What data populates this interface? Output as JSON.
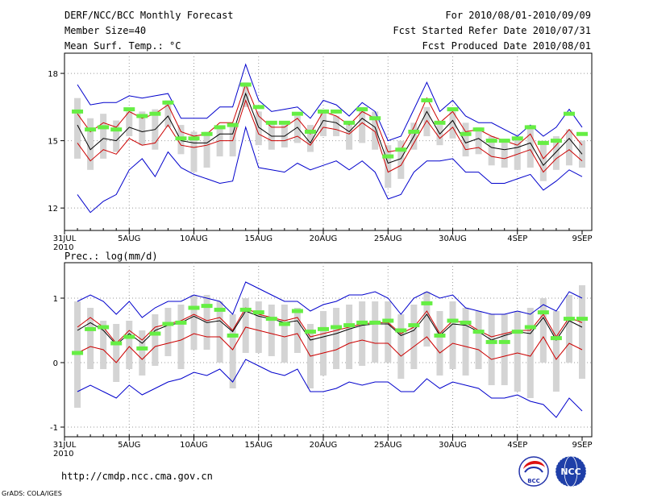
{
  "header": {
    "left": [
      "DERF/NCC/BCC Monthly Forecast",
      "Member Size=40",
      "Mean Surf. Temp.: °C"
    ],
    "right": [
      "For 2010/08/01-2010/09/09",
      "Fcst Started Refer Date 2010/07/31",
      "Fcst Produced Date 2010/08/01"
    ]
  },
  "footer": {
    "url": "http://cmdp.ncc.cma.gov.cn",
    "grads": "GrADS: COLA/IGES",
    "logo1_text": "BCC",
    "logo2_text": "NCC"
  },
  "colors": {
    "max": "#0000cc",
    "min": "#0000cc",
    "upper": "#cc0000",
    "lower": "#cc0000",
    "mean": "#000000",
    "bar": "#d4d4d4",
    "marker": "#66ee44"
  },
  "chart_data": [
    {
      "type": "line",
      "title": "Mean Surf. Temp.: °C",
      "x_start_label": "31JUL",
      "x_start_year": "2010",
      "xtick_labels": [
        "31JUL",
        "5AUG",
        "10AUG",
        "15AUG",
        "20AUG",
        "25AUG",
        "30AUG",
        "4SEP",
        "9SEP"
      ],
      "xtick_index": [
        0,
        5,
        10,
        15,
        20,
        25,
        30,
        35,
        40
      ],
      "ytick_values": [
        12,
        15,
        18
      ],
      "ytick_labels": [
        "12",
        "15",
        "18"
      ],
      "ylim": [
        11,
        18.9
      ],
      "x_index": [
        1,
        2,
        3,
        4,
        5,
        6,
        7,
        8,
        9,
        10,
        11,
        12,
        13,
        14,
        15,
        16,
        17,
        18,
        19,
        20,
        21,
        22,
        23,
        24,
        25,
        26,
        27,
        28,
        29,
        30,
        31,
        32,
        33,
        34,
        35,
        36,
        37,
        38,
        39,
        40
      ],
      "series": [
        {
          "name": "max",
          "values": [
            17.5,
            16.6,
            16.7,
            16.7,
            17.0,
            16.9,
            17.0,
            17.1,
            16.0,
            16.0,
            16.0,
            16.5,
            16.5,
            18.4,
            16.8,
            16.3,
            16.4,
            16.5,
            16.0,
            16.8,
            16.6,
            16.1,
            16.7,
            16.3,
            15.0,
            15.2,
            16.4,
            17.6,
            16.3,
            16.8,
            16.1,
            15.8,
            15.8,
            15.5,
            15.2,
            15.7,
            15.2,
            15.6,
            16.4,
            15.6
          ]
        },
        {
          "name": "upper",
          "values": [
            16.2,
            15.4,
            15.8,
            15.6,
            16.3,
            16.0,
            16.2,
            16.6,
            15.4,
            15.2,
            15.3,
            15.8,
            15.8,
            17.5,
            16.1,
            15.6,
            15.6,
            16.0,
            15.3,
            16.3,
            16.1,
            15.7,
            16.3,
            16.0,
            14.5,
            14.6,
            15.6,
            16.9,
            15.8,
            16.3,
            15.4,
            15.5,
            15.2,
            15.0,
            14.8,
            15.3,
            14.2,
            14.8,
            15.5,
            14.8
          ]
        },
        {
          "name": "mean",
          "values": [
            15.7,
            14.6,
            15.1,
            15.0,
            15.6,
            15.4,
            15.5,
            16.1,
            15.0,
            14.9,
            14.9,
            15.3,
            15.3,
            17.1,
            15.6,
            15.2,
            15.2,
            15.6,
            14.9,
            15.9,
            15.8,
            15.4,
            16.0,
            15.6,
            14.0,
            14.2,
            15.2,
            16.3,
            15.3,
            15.9,
            14.9,
            15.1,
            14.7,
            14.6,
            14.7,
            14.9,
            13.9,
            14.5,
            15.1,
            14.4
          ]
        },
        {
          "name": "lower",
          "values": [
            14.9,
            14.1,
            14.6,
            14.4,
            15.1,
            14.8,
            14.9,
            15.7,
            14.8,
            14.7,
            14.8,
            15.0,
            15.0,
            16.8,
            15.3,
            15.0,
            15.0,
            15.2,
            14.8,
            15.6,
            15.5,
            15.3,
            15.8,
            15.4,
            13.6,
            13.9,
            14.9,
            15.9,
            15.1,
            15.6,
            14.6,
            14.7,
            14.3,
            14.2,
            14.4,
            14.6,
            13.6,
            14.2,
            14.6,
            14.1
          ]
        },
        {
          "name": "min",
          "values": [
            12.6,
            11.8,
            12.3,
            12.6,
            13.7,
            14.2,
            13.4,
            14.5,
            13.8,
            13.5,
            13.3,
            13.1,
            13.2,
            15.6,
            13.8,
            13.7,
            13.6,
            14.0,
            13.7,
            13.9,
            14.1,
            13.7,
            14.1,
            13.6,
            12.4,
            12.6,
            13.6,
            14.1,
            14.1,
            14.2,
            13.6,
            13.6,
            13.1,
            13.1,
            13.3,
            13.5,
            12.8,
            13.2,
            13.7,
            13.4
          ]
        },
        {
          "name": "bar_top",
          "values": [
            16.9,
            16.0,
            16.2,
            15.9,
            16.3,
            16.3,
            16.4,
            16.8,
            15.7,
            15.4,
            15.4,
            15.6,
            15.7,
            17.6,
            16.3,
            15.8,
            15.7,
            16.1,
            15.7,
            16.3,
            16.1,
            15.8,
            16.5,
            16.3,
            14.8,
            15.0,
            15.8,
            16.5,
            15.7,
            16.3,
            15.8,
            15.6,
            15.2,
            15.0,
            15.2,
            15.7,
            15.0,
            15.2,
            15.5,
            15.0
          ]
        },
        {
          "name": "bar_bottom",
          "values": [
            14.2,
            13.7,
            14.2,
            14.5,
            15.2,
            14.8,
            14.6,
            15.6,
            14.4,
            13.6,
            13.8,
            14.3,
            14.3,
            16.5,
            14.8,
            14.6,
            14.7,
            14.9,
            14.5,
            15.2,
            15.2,
            14.6,
            14.9,
            14.6,
            12.9,
            13.3,
            14.6,
            15.2,
            14.8,
            15.1,
            14.3,
            14.4,
            13.9,
            13.8,
            13.7,
            13.8,
            13.2,
            13.7,
            13.9,
            13.8
          ]
        },
        {
          "name": "marker",
          "values": [
            16.3,
            15.5,
            15.6,
            15.5,
            16.4,
            16.1,
            16.2,
            16.7,
            15.1,
            15.1,
            15.3,
            15.6,
            15.7,
            17.5,
            16.5,
            15.8,
            15.8,
            16.2,
            15.4,
            16.3,
            16.3,
            15.8,
            16.4,
            16.0,
            14.3,
            14.6,
            15.4,
            16.8,
            15.8,
            16.4,
            15.3,
            15.5,
            15.0,
            15.0,
            15.1,
            15.6,
            14.9,
            15.0,
            16.2,
            15.3
          ]
        }
      ]
    },
    {
      "type": "line",
      "title": "Prec.: log(mm/d)",
      "x_start_label": "31JUL",
      "x_start_year": "2010",
      "xtick_labels": [
        "31JUL",
        "5AUG",
        "10AUG",
        "15AUG",
        "20AUG",
        "25AUG",
        "30AUG",
        "4SEP",
        "9SEP"
      ],
      "xtick_index": [
        0,
        5,
        10,
        15,
        20,
        25,
        30,
        35,
        40
      ],
      "ytick_values": [
        -1,
        0,
        1
      ],
      "ytick_labels": [
        "-1",
        "0",
        "1"
      ],
      "ylim": [
        -1.15,
        1.55
      ],
      "x_index": [
        1,
        2,
        3,
        4,
        5,
        6,
        7,
        8,
        9,
        10,
        11,
        12,
        13,
        14,
        15,
        16,
        17,
        18,
        19,
        20,
        21,
        22,
        23,
        24,
        25,
        26,
        27,
        28,
        29,
        30,
        31,
        32,
        33,
        34,
        35,
        36,
        37,
        38,
        39,
        40
      ],
      "series": [
        {
          "name": "max",
          "values": [
            0.95,
            1.05,
            0.95,
            0.75,
            0.95,
            0.7,
            0.85,
            0.95,
            0.95,
            1.05,
            1.0,
            0.95,
            0.75,
            1.25,
            1.15,
            1.05,
            0.95,
            0.95,
            0.8,
            0.9,
            0.95,
            1.05,
            1.05,
            1.1,
            1.0,
            0.75,
            1.0,
            1.1,
            1.0,
            1.05,
            0.85,
            0.8,
            0.75,
            0.75,
            0.8,
            0.75,
            0.9,
            0.8,
            1.1,
            1.0
          ]
        },
        {
          "name": "upper",
          "values": [
            0.55,
            0.7,
            0.55,
            0.3,
            0.5,
            0.35,
            0.55,
            0.6,
            0.65,
            0.75,
            0.65,
            0.7,
            0.5,
            0.85,
            0.75,
            0.7,
            0.65,
            0.7,
            0.4,
            0.45,
            0.5,
            0.55,
            0.6,
            0.62,
            0.62,
            0.45,
            0.55,
            0.8,
            0.45,
            0.65,
            0.62,
            0.5,
            0.4,
            0.45,
            0.5,
            0.5,
            0.75,
            0.4,
            0.7,
            0.62
          ]
        },
        {
          "name": "mean",
          "values": [
            0.5,
            0.62,
            0.5,
            0.28,
            0.45,
            0.3,
            0.5,
            0.58,
            0.62,
            0.72,
            0.62,
            0.65,
            0.48,
            0.8,
            0.72,
            0.68,
            0.62,
            0.65,
            0.35,
            0.4,
            0.45,
            0.52,
            0.58,
            0.6,
            0.6,
            0.42,
            0.5,
            0.75,
            0.42,
            0.6,
            0.58,
            0.48,
            0.35,
            0.42,
            0.48,
            0.45,
            0.7,
            0.35,
            0.65,
            0.55
          ]
        },
        {
          "name": "lower",
          "values": [
            0.15,
            0.25,
            0.2,
            0.0,
            0.25,
            0.05,
            0.25,
            0.3,
            0.35,
            0.45,
            0.4,
            0.4,
            0.2,
            0.55,
            0.5,
            0.45,
            0.4,
            0.45,
            0.1,
            0.15,
            0.2,
            0.3,
            0.35,
            0.3,
            0.3,
            0.1,
            0.25,
            0.4,
            0.15,
            0.3,
            0.25,
            0.2,
            0.05,
            0.1,
            0.15,
            0.1,
            0.4,
            0.05,
            0.3,
            0.2
          ]
        },
        {
          "name": "min",
          "values": [
            -0.45,
            -0.35,
            -0.45,
            -0.55,
            -0.35,
            -0.5,
            -0.4,
            -0.3,
            -0.25,
            -0.15,
            -0.2,
            -0.1,
            -0.3,
            0.05,
            -0.05,
            -0.15,
            -0.2,
            -0.1,
            -0.45,
            -0.45,
            -0.4,
            -0.3,
            -0.35,
            -0.3,
            -0.3,
            -0.45,
            -0.45,
            -0.25,
            -0.4,
            -0.3,
            -0.35,
            -0.4,
            -0.55,
            -0.55,
            -0.5,
            -0.6,
            -0.65,
            -0.85,
            -0.55,
            -0.75
          ]
        },
        {
          "name": "bar_top",
          "values": [
            0.95,
            0.85,
            0.65,
            0.6,
            0.65,
            0.5,
            0.75,
            0.85,
            0.9,
            1.05,
            1.05,
            0.95,
            0.75,
            1.0,
            0.95,
            0.9,
            0.9,
            0.85,
            0.6,
            0.8,
            0.85,
            0.9,
            0.95,
            0.95,
            0.95,
            0.75,
            0.9,
            1.1,
            0.8,
            0.95,
            0.85,
            0.8,
            0.75,
            0.75,
            0.8,
            0.85,
            1.0,
            0.8,
            1.05,
            1.2
          ]
        },
        {
          "name": "bar_bottom",
          "values": [
            -0.7,
            -0.1,
            -0.1,
            -0.3,
            -0.1,
            -0.2,
            -0.05,
            0.1,
            -0.1,
            0.2,
            0.2,
            0.0,
            -0.4,
            0.15,
            0.15,
            0.1,
            0.0,
            0.15,
            -0.4,
            -0.2,
            -0.1,
            -0.1,
            -0.05,
            0.0,
            0.0,
            -0.25,
            -0.1,
            0.25,
            -0.2,
            -0.1,
            -0.2,
            -0.1,
            -0.35,
            -0.35,
            -0.45,
            -0.55,
            0.0,
            -0.45,
            0.0,
            -0.25
          ]
        },
        {
          "name": "marker",
          "values": [
            0.15,
            0.52,
            0.55,
            0.3,
            0.4,
            0.22,
            0.45,
            0.6,
            0.62,
            0.85,
            0.88,
            0.82,
            0.42,
            0.82,
            0.78,
            0.68,
            0.6,
            0.8,
            0.48,
            0.52,
            0.55,
            0.58,
            0.62,
            0.62,
            0.65,
            0.5,
            0.58,
            0.92,
            0.42,
            0.65,
            0.62,
            0.48,
            0.32,
            0.32,
            0.48,
            0.55,
            0.78,
            0.38,
            0.68,
            0.68
          ]
        }
      ]
    }
  ]
}
